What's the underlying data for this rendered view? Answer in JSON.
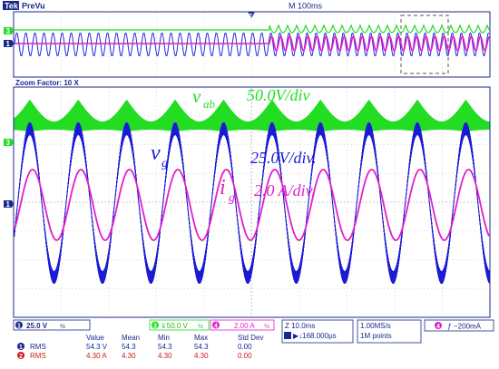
{
  "header": {
    "brand": "Tek",
    "mode": "PreVu",
    "timebase": "M 100ms",
    "trigger_marker": "T"
  },
  "zoom": {
    "label": "Zoom Factor: 10 X"
  },
  "channel_markers": {
    "ch3": "3",
    "ch1": "1"
  },
  "annotations": {
    "vab": {
      "sym": "v",
      "sub": "ab",
      "scale": "50.0V/div"
    },
    "vg": {
      "sym": "v",
      "sub": "g",
      "scale": "25.0V/div."
    },
    "ig": {
      "sym": "i",
      "sub": "g",
      "scale": "2.0 A/div."
    }
  },
  "status": {
    "ch1_num": "1",
    "ch1_scale": "25.0 V",
    "ch1_bw": "½",
    "ch3_num": "3",
    "ch3_scale": "⇓50.0 V",
    "ch3_bw": "½",
    "ch4_num": "4",
    "ch4_scale": "2.00 A",
    "ch4_bw": "½",
    "zoom_time": "Z 10.0ms",
    "zoom_pos": "▶↓168.000μs",
    "sample_rate": "1.00MS/s",
    "record": "1M points",
    "trig_num": "4",
    "trig_slope": "ƒ",
    "trig_level": "−200mA"
  },
  "colors": {
    "ch1": "#1b1bd6",
    "ch3": "#22dd22",
    "ch4": "#e020c8",
    "ch2": "#d01818",
    "navy": "#1a2a8c",
    "grid": "#9aa0b4"
  },
  "measurements": {
    "headers": [
      "Value",
      "Mean",
      "Min",
      "Max",
      "Std Dev"
    ],
    "rows": [
      {
        "num": "1",
        "label": "RMS",
        "value": "54.3 V",
        "mean": "54.3",
        "min": "54.3",
        "max": "54.3",
        "std": "0.00"
      },
      {
        "num": "2",
        "label": "RMS",
        "value": "4.30 A",
        "mean": "4.30",
        "min": "4.30",
        "max": "4.30",
        "std": "0.00"
      }
    ]
  }
}
